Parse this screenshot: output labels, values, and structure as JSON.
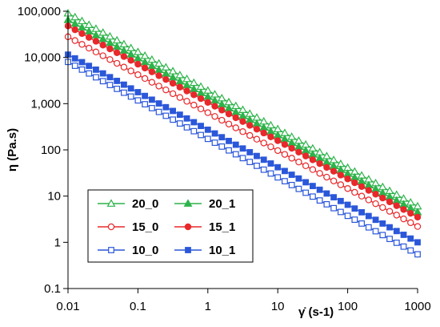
{
  "chart_data": {
    "type": "line",
    "x_scale": "log",
    "y_scale": "log",
    "xlim": [
      0.01,
      1000
    ],
    "ylim": [
      0.1,
      100000
    ],
    "x_ticks": [
      "0.01",
      "0.1",
      "1",
      "10",
      "100",
      "1000"
    ],
    "y_ticks": [
      "0.1",
      "1",
      "10",
      "100",
      "1,000",
      "10,000",
      "100,000"
    ],
    "ylabel": "η (Pa.s)",
    "xlabel": "γ̇ (s-1)",
    "grid": false,
    "legend_position": "lower-left",
    "series": [
      {
        "name": "20_0",
        "color": "#2db34a",
        "marker": "triangle",
        "filled": false,
        "x_start": 0.01,
        "x_end": 1000,
        "y_start": 90000,
        "y_end": 6.0
      },
      {
        "name": "20_1",
        "color": "#2db34a",
        "marker": "triangle",
        "filled": true,
        "x_start": 0.01,
        "x_end": 1000,
        "y_start": 65000,
        "y_end": 4.5
      },
      {
        "name": "15_0",
        "color": "#e8282b",
        "marker": "circle",
        "filled": false,
        "x_start": 0.01,
        "x_end": 1000,
        "y_start": 28000,
        "y_end": 2.2
      },
      {
        "name": "15_1",
        "color": "#e8282b",
        "marker": "circle",
        "filled": true,
        "x_start": 0.01,
        "x_end": 1000,
        "y_start": 48000,
        "y_end": 3.5
      },
      {
        "name": "10_0",
        "color": "#2b57d9",
        "marker": "square",
        "filled": false,
        "x_start": 0.01,
        "x_end": 1000,
        "y_start": 8000,
        "y_end": 0.55
      },
      {
        "name": "10_1",
        "color": "#2b57d9",
        "marker": "square",
        "filled": true,
        "x_start": 0.01,
        "x_end": 1000,
        "y_start": 11500,
        "y_end": 1.0
      }
    ],
    "points_per_decade": 10
  },
  "legend": {
    "entries": [
      {
        "series": "20_0",
        "label": "20_0"
      },
      {
        "series": "20_1",
        "label": "20_1"
      },
      {
        "series": "15_0",
        "label": "15_0"
      },
      {
        "series": "15_1",
        "label": "15_1"
      },
      {
        "series": "10_0",
        "label": "10_0"
      },
      {
        "series": "10_1",
        "label": "10_1"
      }
    ]
  }
}
